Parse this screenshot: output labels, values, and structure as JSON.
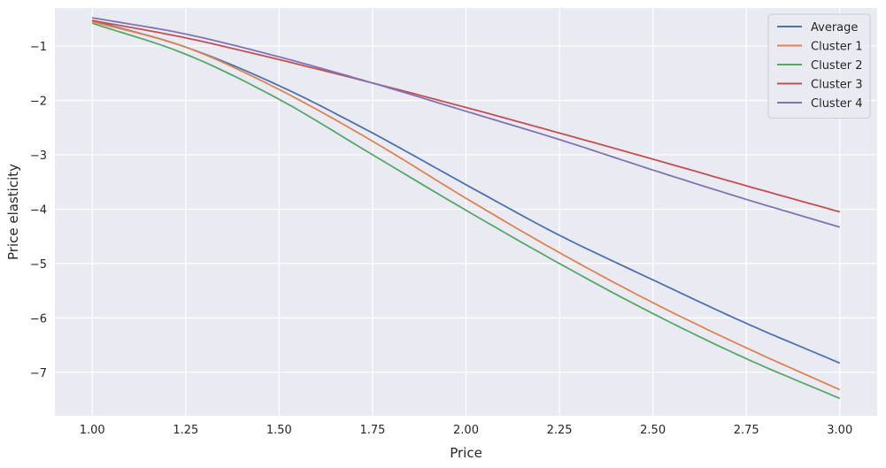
{
  "chart_data": {
    "type": "line",
    "xlabel": "Price",
    "ylabel": "Price elasticity",
    "xlim": [
      0.9,
      3.1
    ],
    "ylim": [
      -7.8,
      -0.3
    ],
    "xticks": [
      1.0,
      1.25,
      1.5,
      1.75,
      2.0,
      2.25,
      2.5,
      2.75,
      3.0
    ],
    "xtick_labels": [
      "1.00",
      "1.25",
      "1.50",
      "1.75",
      "2.00",
      "2.25",
      "2.50",
      "2.75",
      "3.00"
    ],
    "yticks": [
      -1,
      -2,
      -3,
      -4,
      -5,
      -6,
      -7
    ],
    "ytick_labels": [
      "−1",
      "−2",
      "−3",
      "−4",
      "−5",
      "−6",
      "−7"
    ],
    "grid": true,
    "legend_position": "top-right",
    "x": [
      1.0,
      1.25,
      1.5,
      1.75,
      2.0,
      2.25,
      2.5,
      2.75,
      3.0
    ],
    "series": [
      {
        "name": "Average",
        "color": "#4c72b0",
        "values": [
          -0.53,
          -1.02,
          -1.73,
          -2.6,
          -3.55,
          -4.48,
          -5.3,
          -6.1,
          -6.83
        ]
      },
      {
        "name": "Cluster 1",
        "color": "#dd8452",
        "values": [
          -0.55,
          -1.02,
          -1.8,
          -2.75,
          -3.8,
          -4.8,
          -5.72,
          -6.55,
          -7.32
        ]
      },
      {
        "name": "Cluster 2",
        "color": "#55a868",
        "values": [
          -0.58,
          -1.15,
          -1.98,
          -3.0,
          -4.02,
          -5.0,
          -5.92,
          -6.75,
          -7.48
        ]
      },
      {
        "name": "Cluster 3",
        "color": "#c44e52",
        "values": [
          -0.53,
          -0.85,
          -1.25,
          -1.68,
          -2.13,
          -2.6,
          -3.08,
          -3.57,
          -4.05
        ]
      },
      {
        "name": "Cluster 4",
        "color": "#8172b3",
        "values": [
          -0.48,
          -0.78,
          -1.2,
          -1.68,
          -2.2,
          -2.72,
          -3.28,
          -3.82,
          -4.33
        ]
      }
    ]
  }
}
